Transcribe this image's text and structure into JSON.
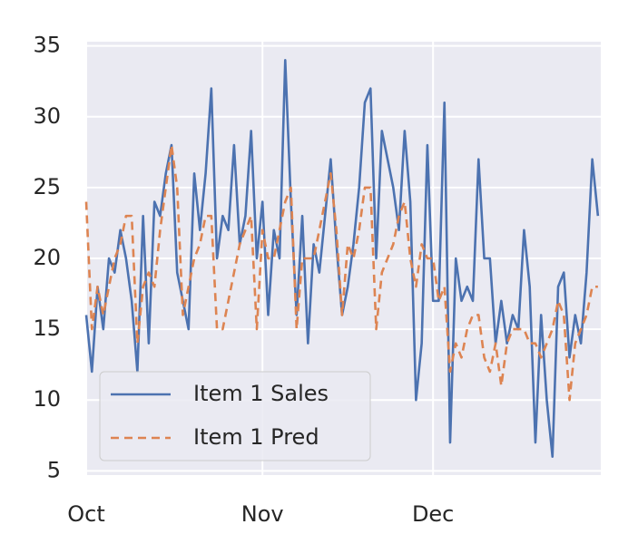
{
  "chart_data": {
    "type": "line",
    "x": [
      0,
      1,
      2,
      3,
      4,
      5,
      6,
      7,
      8,
      9,
      10,
      11,
      12,
      13,
      14,
      15,
      16,
      17,
      18,
      19,
      20,
      21,
      22,
      23,
      24,
      25,
      26,
      27,
      28,
      29,
      30,
      31,
      32,
      33,
      34,
      35,
      36,
      37,
      38,
      39,
      40,
      41,
      42,
      43,
      44,
      45,
      46,
      47,
      48,
      49,
      50,
      51,
      52,
      53,
      54,
      55,
      56,
      57,
      58,
      59,
      60,
      61,
      62,
      63,
      64,
      65,
      66,
      67,
      68,
      69,
      70,
      71,
      72,
      73,
      74,
      75,
      76,
      77,
      78,
      79,
      80,
      81,
      82,
      83,
      84,
      85,
      86,
      87,
      88,
      89,
      90
    ],
    "series": [
      {
        "name": "Item 1 Sales",
        "color": "#4c72b0",
        "dash": false,
        "values": [
          16,
          12,
          18,
          15,
          20,
          19,
          22,
          20,
          17,
          12,
          23,
          14,
          24,
          23,
          26,
          28,
          19,
          17,
          15,
          26,
          22,
          26,
          32,
          20,
          23,
          22,
          28,
          21,
          23,
          29,
          20,
          24,
          16,
          22,
          20,
          34,
          24,
          16,
          23,
          14,
          21,
          19,
          23,
          27,
          21,
          16,
          18,
          21,
          25,
          31,
          32,
          20,
          29,
          27,
          25,
          22,
          29,
          24,
          10,
          14,
          28,
          17,
          17,
          31,
          7,
          20,
          17,
          18,
          17,
          27,
          20,
          20,
          14,
          17,
          14,
          16,
          15,
          22,
          18,
          7,
          16,
          10,
          6,
          18,
          19,
          13,
          16,
          14,
          19,
          27,
          23
        ]
      },
      {
        "name": "Item 1 Pred",
        "color": "#dd8452",
        "dash": true,
        "values": [
          24,
          15,
          18,
          16,
          18,
          20,
          21,
          23,
          23,
          14,
          18,
          19,
          18,
          22,
          25,
          28,
          25,
          16,
          18,
          20,
          21,
          23,
          23,
          15,
          15,
          17,
          19,
          21,
          22,
          23,
          15,
          22,
          20,
          20,
          22,
          24,
          25,
          15,
          20,
          20,
          20,
          22,
          24,
          26,
          22,
          16,
          21,
          20,
          22,
          25,
          25,
          15,
          19,
          20,
          21,
          23,
          24,
          20,
          18,
          21,
          20,
          20,
          17,
          18,
          12,
          14,
          13,
          15,
          16,
          16,
          13,
          12,
          14,
          11,
          14,
          15,
          15,
          15,
          14,
          14,
          13,
          14,
          15,
          17,
          16,
          10,
          14,
          15,
          16,
          18,
          18
        ]
      }
    ],
    "xlim": [
      0,
      90.5
    ],
    "xticks": [
      {
        "value": 0,
        "label": "Oct"
      },
      {
        "value": 31,
        "label": "Nov"
      },
      {
        "value": 61,
        "label": "Dec"
      }
    ],
    "ylim": [
      4.7,
      35.3
    ],
    "yticks": [
      5,
      10,
      15,
      20,
      25,
      30,
      35
    ],
    "grid": true,
    "legend": "lower left"
  }
}
